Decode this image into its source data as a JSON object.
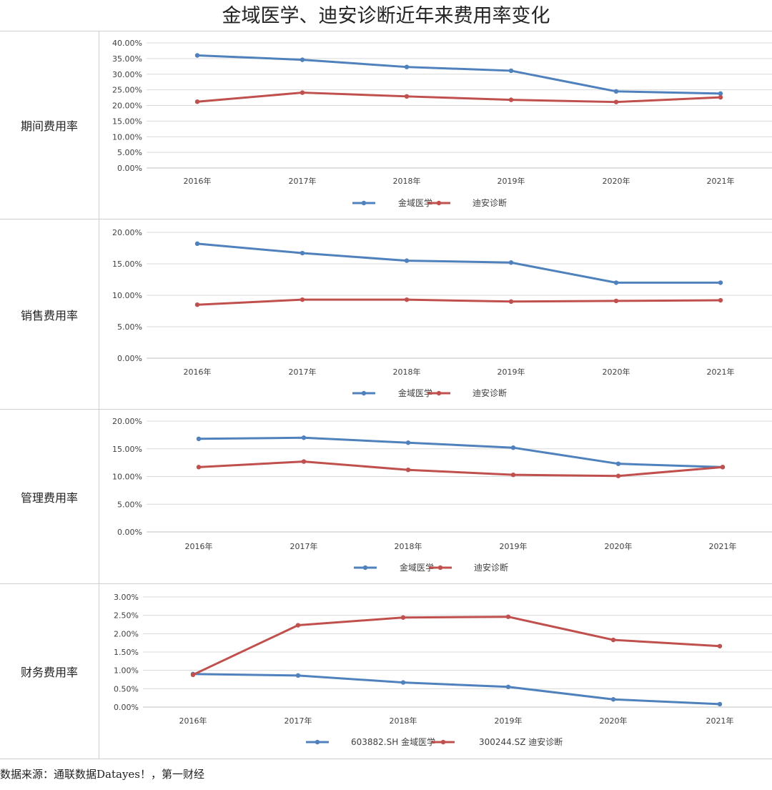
{
  "page_title": "金域医学、迪安诊断近年来费用率变化",
  "source_note": "数据来源：通联数据Datayes！，第一财经",
  "colors": {
    "jinyu": "#4f81bd",
    "dian": "#c0504d",
    "grid": "#d9d9d9",
    "axis": "#bfbfbf"
  },
  "rows": [
    {
      "label": "期间费用率"
    },
    {
      "label": "销售费用率"
    },
    {
      "label": "管理费用率"
    },
    {
      "label": "财务费用率"
    }
  ],
  "chart_data": [
    {
      "type": "line",
      "title": "",
      "categories": [
        "2016年",
        "2017年",
        "2018年",
        "2019年",
        "2020年",
        "2021年"
      ],
      "y_ticks": [
        "40.00%",
        "35.00%",
        "30.00%",
        "25.00%",
        "20.00%",
        "15.00%",
        "10.00%",
        "5.00%",
        "0.00%"
      ],
      "ylim": [
        0,
        40
      ],
      "grid": true,
      "legend_position": "bottom",
      "series": [
        {
          "name": "金域医学",
          "color": "#4f81bd",
          "values": [
            36.0,
            34.6,
            32.3,
            31.1,
            24.5,
            23.8
          ]
        },
        {
          "name": "迪安诊断",
          "color": "#c0504d",
          "values": [
            21.2,
            24.1,
            22.9,
            21.8,
            21.1,
            22.6
          ]
        }
      ]
    },
    {
      "type": "line",
      "title": "",
      "categories": [
        "2016年",
        "2017年",
        "2018年",
        "2019年",
        "2020年",
        "2021年"
      ],
      "y_ticks": [
        "20.00%",
        "15.00%",
        "10.00%",
        "5.00%",
        "0.00%"
      ],
      "ylim": [
        0,
        20
      ],
      "grid": true,
      "legend_position": "bottom",
      "series": [
        {
          "name": "金域医学",
          "color": "#4f81bd",
          "values": [
            18.2,
            16.7,
            15.5,
            15.2,
            12.0,
            12.0
          ]
        },
        {
          "name": "迪安诊断",
          "color": "#c0504d",
          "values": [
            8.5,
            9.3,
            9.3,
            9.0,
            9.1,
            9.2
          ]
        }
      ]
    },
    {
      "type": "line",
      "title": "",
      "categories": [
        "2016年",
        "2017年",
        "2018年",
        "2019年",
        "2020年",
        "2021年"
      ],
      "y_ticks": [
        "20.00%",
        "15.00%",
        "10.00%",
        "5.00%",
        "0.00%"
      ],
      "ylim": [
        0,
        20
      ],
      "grid": true,
      "legend_position": "bottom",
      "series": [
        {
          "name": "金域医学",
          "color": "#4f81bd",
          "values": [
            16.8,
            17.0,
            16.1,
            15.2,
            12.3,
            11.7
          ]
        },
        {
          "name": "迪安诊断",
          "color": "#c0504d",
          "values": [
            11.7,
            12.7,
            11.2,
            10.3,
            10.1,
            11.7
          ]
        }
      ]
    },
    {
      "type": "line",
      "title": "",
      "categories": [
        "2016年",
        "2017年",
        "2018年",
        "2019年",
        "2020年",
        "2021年"
      ],
      "y_ticks": [
        "3.00%",
        "2.50%",
        "2.00%",
        "1.50%",
        "1.00%",
        "0.50%",
        "0.00%"
      ],
      "ylim": [
        0,
        3
      ],
      "grid": true,
      "legend_position": "bottom",
      "series": [
        {
          "name": "603882.SH 金域医学",
          "color": "#4f81bd",
          "values": [
            0.9,
            0.86,
            0.67,
            0.55,
            0.21,
            0.08
          ]
        },
        {
          "name": "300244.SZ 迪安诊断",
          "color": "#c0504d",
          "values": [
            0.88,
            2.23,
            2.44,
            2.46,
            1.83,
            1.66
          ]
        }
      ]
    }
  ]
}
